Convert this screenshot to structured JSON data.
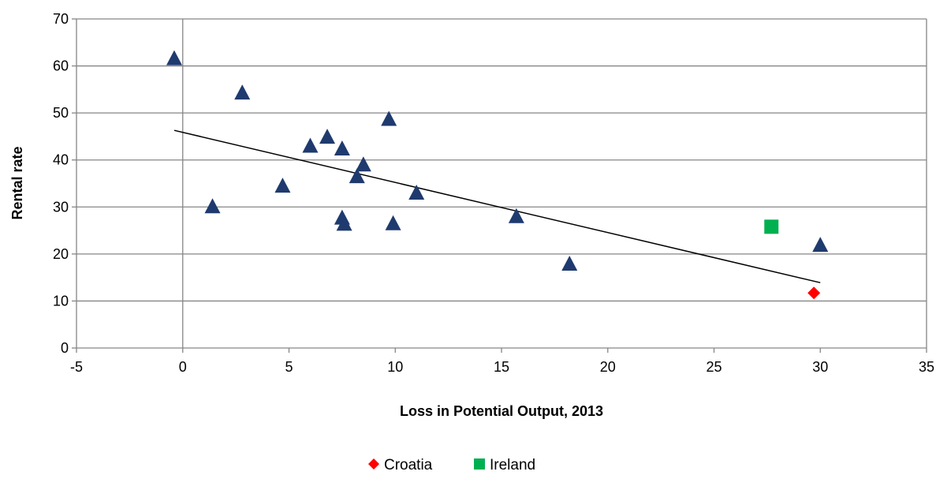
{
  "chart_data": {
    "type": "scatter",
    "title": "",
    "xlabel": "Loss in Potential Output, 2013",
    "ylabel": "Rental rate",
    "xlim": [
      -5,
      35
    ],
    "ylim": [
      0,
      70
    ],
    "xticks": [
      -5,
      0,
      5,
      10,
      15,
      20,
      25,
      30,
      35
    ],
    "yticks": [
      0,
      10,
      20,
      30,
      40,
      50,
      60,
      70
    ],
    "x_tick_labels": [
      "-5",
      "0",
      "5",
      "10",
      "15",
      "20",
      "25",
      "30",
      "35"
    ],
    "y_tick_labels": [
      "0",
      "10",
      "20",
      "30",
      "40",
      "50",
      "60",
      "70"
    ],
    "grid": "horizontal",
    "legend_position": "bottom",
    "series": [
      {
        "marker": "triangle",
        "color": "#1f3a6e",
        "points": [
          {
            "x": -0.4,
            "y": 61.5
          },
          {
            "x": 1.4,
            "y": 30.0
          },
          {
            "x": 2.8,
            "y": 54.2
          },
          {
            "x": 4.7,
            "y": 34.4
          },
          {
            "x": 6.0,
            "y": 42.9
          },
          {
            "x": 6.8,
            "y": 44.8
          },
          {
            "x": 7.5,
            "y": 42.3
          },
          {
            "x": 7.5,
            "y": 27.6
          },
          {
            "x": 7.6,
            "y": 26.3
          },
          {
            "x": 8.2,
            "y": 36.4
          },
          {
            "x": 8.5,
            "y": 38.9
          },
          {
            "x": 9.7,
            "y": 48.6
          },
          {
            "x": 9.9,
            "y": 26.4
          },
          {
            "x": 11.0,
            "y": 32.9
          },
          {
            "x": 15.7,
            "y": 27.9
          },
          {
            "x": 18.2,
            "y": 17.8
          },
          {
            "x": 30.0,
            "y": 21.8
          }
        ]
      },
      {
        "name": "Croatia",
        "marker": "diamond",
        "color": "#ff0000",
        "points": [
          {
            "x": 29.7,
            "y": 11.7
          }
        ]
      },
      {
        "name": "Ireland",
        "marker": "square",
        "color": "#00b050",
        "points": [
          {
            "x": 27.7,
            "y": 25.8
          }
        ]
      }
    ],
    "trendline": {
      "color": "#000000",
      "points": [
        {
          "x": -0.4,
          "y": 46.3
        },
        {
          "x": 30.0,
          "y": 13.9
        }
      ]
    },
    "legend": [
      "Croatia",
      "Ireland"
    ]
  }
}
